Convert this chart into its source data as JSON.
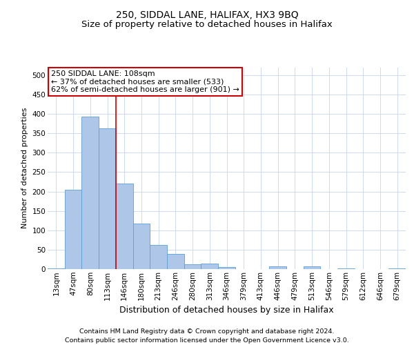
{
  "title_line1": "250, SIDDAL LANE, HALIFAX, HX3 9BQ",
  "title_line2": "Size of property relative to detached houses in Halifax",
  "xlabel": "Distribution of detached houses by size in Halifax",
  "ylabel": "Number of detached properties",
  "footer_line1": "Contains HM Land Registry data © Crown copyright and database right 2024.",
  "footer_line2": "Contains public sector information licensed under the Open Government Licence v3.0.",
  "categories": [
    "13sqm",
    "47sqm",
    "80sqm",
    "113sqm",
    "146sqm",
    "180sqm",
    "213sqm",
    "246sqm",
    "280sqm",
    "313sqm",
    "346sqm",
    "379sqm",
    "413sqm",
    "446sqm",
    "479sqm",
    "513sqm",
    "546sqm",
    "579sqm",
    "612sqm",
    "646sqm",
    "679sqm"
  ],
  "values": [
    2,
    205,
    393,
    363,
    220,
    118,
    63,
    40,
    13,
    14,
    6,
    0,
    0,
    7,
    0,
    7,
    0,
    2,
    0,
    0,
    1
  ],
  "bar_color": "#aec6e8",
  "bar_edge_color": "#5a9fd4",
  "vline_color": "#cc0000",
  "vline_index": 3.5,
  "annotation_title": "250 SIDDAL LANE: 108sqm",
  "annotation_line1": "← 37% of detached houses are smaller (533)",
  "annotation_line2": "62% of semi-detached houses are larger (901) →",
  "annotation_box_color": "#ffffff",
  "annotation_box_edge": "#cc0000",
  "ylim": [
    0,
    520
  ],
  "yticks": [
    0,
    50,
    100,
    150,
    200,
    250,
    300,
    350,
    400,
    450,
    500
  ],
  "bg_color": "#ffffff",
  "grid_color": "#c8d4e8",
  "title_fontsize": 10,
  "subtitle_fontsize": 9.5,
  "ylabel_fontsize": 8,
  "xlabel_fontsize": 9,
  "tick_fontsize": 7.5,
  "footer_fontsize": 6.8,
  "ann_fontsize": 8
}
